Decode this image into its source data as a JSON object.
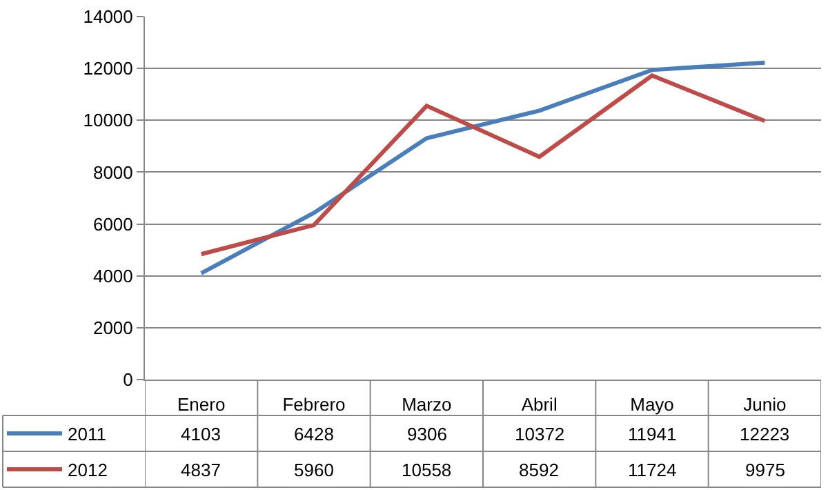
{
  "chart_data": {
    "type": "line",
    "categories": [
      "Enero",
      "Febrero",
      "Marzo",
      "Abril",
      "Mayo",
      "Junio"
    ],
    "series": [
      {
        "name": "2011",
        "color": "#4a7ebb",
        "values": [
          4103,
          6428,
          9306,
          10372,
          11941,
          12223
        ]
      },
      {
        "name": "2012",
        "color": "#be4b48",
        "values": [
          4837,
          5960,
          10558,
          8592,
          11724,
          9975
        ]
      }
    ],
    "ylim": [
      0,
      14000
    ],
    "yticks": [
      0,
      2000,
      4000,
      6000,
      8000,
      10000,
      12000,
      14000
    ],
    "grid": "y",
    "legend": "bottom left",
    "data_labels": true,
    "marker": "none",
    "line_style": "solid"
  }
}
